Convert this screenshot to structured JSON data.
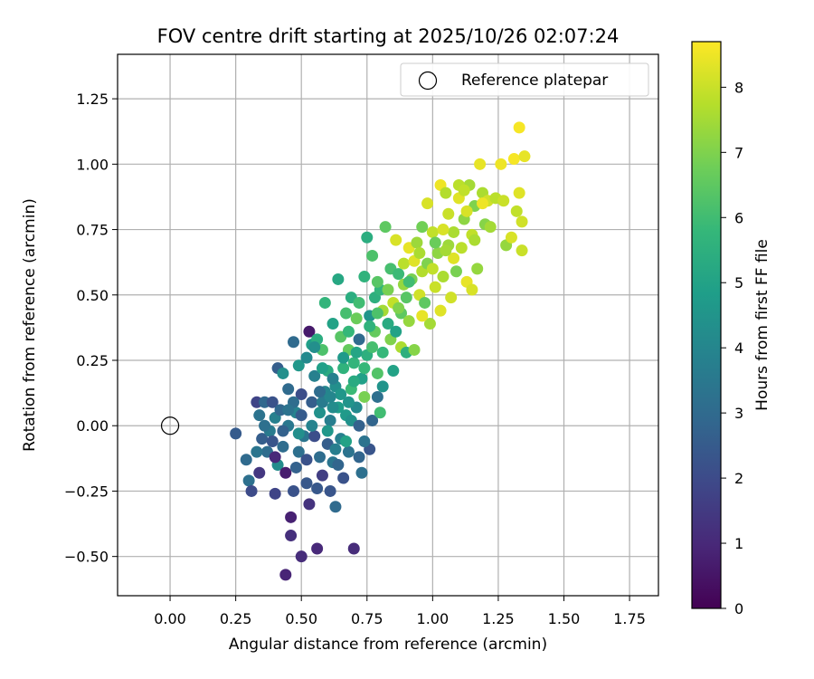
{
  "chart_data": {
    "type": "scatter",
    "title": "FOV centre drift starting at 2025/10/26 02:07:24",
    "xlabel": "Angular distance from reference (arcmin)",
    "ylabel": "Rotation from reference (arcmin)",
    "xlim": [
      -0.2,
      1.86
    ],
    "ylim": [
      -0.65,
      1.42
    ],
    "xticks": [
      0.0,
      0.25,
      0.5,
      0.75,
      1.0,
      1.25,
      1.5,
      1.75
    ],
    "xtick_labels": [
      "0.00",
      "0.25",
      "0.50",
      "0.75",
      "1.00",
      "1.25",
      "1.50",
      "1.75"
    ],
    "yticks": [
      -0.5,
      -0.25,
      0.0,
      0.25,
      0.5,
      0.75,
      1.0,
      1.25
    ],
    "ytick_labels": [
      "−0.50",
      "−0.25",
      "0.00",
      "0.25",
      "0.50",
      "0.75",
      "1.00",
      "1.25"
    ],
    "grid": true,
    "legend": {
      "placement": "top-right",
      "entries": [
        {
          "label": "Reference platepar",
          "marker": "open-circle"
        }
      ]
    },
    "reference_point": {
      "x": 0.0,
      "y": 0.0
    },
    "colorbar": {
      "label": "Hours from first FF file",
      "colormap": "viridis",
      "range": [
        0,
        8.7
      ],
      "ticks": [
        0,
        1,
        2,
        3,
        4,
        5,
        6,
        7,
        8
      ],
      "tick_labels": [
        "0",
        "1",
        "2",
        "3",
        "4",
        "5",
        "6",
        "7",
        "8"
      ]
    },
    "colormap_stops": [
      "#440154",
      "#482878",
      "#3e4989",
      "#31688e",
      "#26828e",
      "#1f9e89",
      "#35b779",
      "#6ece58",
      "#b5de2b",
      "#fde725"
    ],
    "points": [
      [
        0.25,
        -0.03,
        2.5
      ],
      [
        0.29,
        -0.13,
        3.0
      ],
      [
        0.3,
        -0.21,
        3.2
      ],
      [
        0.31,
        -0.25,
        2.0
      ],
      [
        0.33,
        0.09,
        1.8
      ],
      [
        0.34,
        -0.18,
        1.4
      ],
      [
        0.34,
        0.04,
        3.3
      ],
      [
        0.35,
        -0.05,
        2.6
      ],
      [
        0.36,
        0.09,
        2.9
      ],
      [
        0.37,
        -0.1,
        3.1
      ],
      [
        0.38,
        -0.02,
        3.6
      ],
      [
        0.39,
        0.09,
        2.2
      ],
      [
        0.4,
        -0.26,
        1.8
      ],
      [
        0.4,
        0.03,
        3.8
      ],
      [
        0.41,
        -0.15,
        4.2
      ],
      [
        0.41,
        0.22,
        2.6
      ],
      [
        0.42,
        0.06,
        2.9
      ],
      [
        0.43,
        -0.08,
        3.1
      ],
      [
        0.43,
        0.2,
        4.3
      ],
      [
        0.44,
        -0.57,
        0.9
      ],
      [
        0.44,
        -0.18,
        0.7
      ],
      [
        0.45,
        0.0,
        3.5
      ],
      [
        0.45,
        0.14,
        3.0
      ],
      [
        0.46,
        -0.35,
        0.8
      ],
      [
        0.46,
        -0.42,
        1.2
      ],
      [
        0.47,
        0.32,
        3.0
      ],
      [
        0.47,
        -0.25,
        2.2
      ],
      [
        0.48,
        0.05,
        3.9
      ],
      [
        0.48,
        -0.16,
        2.7
      ],
      [
        0.49,
        0.23,
        4.6
      ],
      [
        0.49,
        -0.1,
        3.2
      ],
      [
        0.5,
        -0.5,
        1.1
      ],
      [
        0.5,
        0.12,
        2.1
      ],
      [
        0.51,
        -0.04,
        3.4
      ],
      [
        0.52,
        0.26,
        4.1
      ],
      [
        0.52,
        -0.22,
        2.4
      ],
      [
        0.53,
        0.36,
        0.6
      ],
      [
        0.53,
        -0.3,
        1.3
      ],
      [
        0.54,
        0.09,
        2.6
      ],
      [
        0.54,
        0.31,
        4.9
      ],
      [
        0.55,
        -0.04,
        2.1
      ],
      [
        0.55,
        0.19,
        3.8
      ],
      [
        0.56,
        -0.47,
        1.0
      ],
      [
        0.56,
        0.33,
        5.4
      ],
      [
        0.57,
        -0.12,
        3.1
      ],
      [
        0.57,
        0.05,
        4.4
      ],
      [
        0.58,
        0.29,
        6.2
      ],
      [
        0.58,
        -0.19,
        1.6
      ],
      [
        0.59,
        0.13,
        4.0
      ],
      [
        0.59,
        0.47,
        5.7
      ],
      [
        0.6,
        -0.07,
        2.6
      ],
      [
        0.6,
        0.21,
        5.3
      ],
      [
        0.61,
        -0.25,
        2.3
      ],
      [
        0.61,
        0.02,
        3.7
      ],
      [
        0.62,
        0.39,
        5.0
      ],
      [
        0.62,
        -0.14,
        3.4
      ],
      [
        0.63,
        0.15,
        4.3
      ],
      [
        0.63,
        -0.31,
        3.0
      ],
      [
        0.64,
        0.56,
        5.2
      ],
      [
        0.64,
        0.07,
        4.8
      ],
      [
        0.65,
        -0.05,
        3.8
      ],
      [
        0.65,
        0.34,
        6.4
      ],
      [
        0.66,
        0.22,
        5.6
      ],
      [
        0.66,
        -0.2,
        2.2
      ],
      [
        0.67,
        0.43,
        6.1
      ],
      [
        0.67,
        0.04,
        4.7
      ],
      [
        0.68,
        0.29,
        6.6
      ],
      [
        0.68,
        -0.1,
        3.3
      ],
      [
        0.69,
        0.14,
        5.9
      ],
      [
        0.69,
        0.49,
        5.4
      ],
      [
        0.7,
        -0.47,
        1.1
      ],
      [
        0.7,
        0.24,
        5.7
      ],
      [
        0.71,
        0.07,
        4.1
      ],
      [
        0.71,
        0.41,
        6.7
      ],
      [
        0.72,
        -0.12,
        2.8
      ],
      [
        0.72,
        0.33,
        3.0
      ],
      [
        0.73,
        0.18,
        4.9
      ],
      [
        0.73,
        -0.18,
        3.2
      ],
      [
        0.74,
        0.57,
        5.6
      ],
      [
        0.74,
        0.11,
        6.9
      ],
      [
        0.75,
        0.72,
        5.4
      ],
      [
        0.75,
        0.27,
        5.5
      ],
      [
        0.76,
        0.42,
        4.5
      ],
      [
        0.76,
        -0.09,
        2.3
      ],
      [
        0.77,
        0.65,
        6.2
      ],
      [
        0.77,
        0.02,
        2.8
      ],
      [
        0.78,
        0.36,
        6.6
      ],
      [
        0.78,
        0.49,
        5.5
      ],
      [
        0.79,
        0.2,
        6.3
      ],
      [
        0.79,
        0.11,
        3.2
      ],
      [
        0.8,
        0.52,
        5.7
      ],
      [
        0.8,
        0.05,
        6.0
      ],
      [
        0.81,
        0.44,
        7.5
      ],
      [
        0.81,
        0.28,
        5.8
      ],
      [
        0.82,
        0.76,
        6.5
      ],
      [
        0.83,
        0.39,
        5.3
      ],
      [
        0.84,
        0.6,
        6.1
      ],
      [
        0.84,
        0.33,
        7.0
      ],
      [
        0.85,
        0.47,
        7.9
      ],
      [
        0.86,
        0.71,
        8.2
      ],
      [
        0.86,
        0.36,
        5.0
      ],
      [
        0.87,
        0.58,
        5.9
      ],
      [
        0.88,
        0.3,
        7.6
      ],
      [
        0.88,
        0.43,
        6.5
      ],
      [
        0.89,
        0.62,
        7.8
      ],
      [
        0.9,
        0.49,
        6.4
      ],
      [
        0.9,
        0.28,
        5.5
      ],
      [
        0.91,
        0.68,
        8.4
      ],
      [
        0.91,
        0.4,
        7.3
      ],
      [
        0.92,
        0.56,
        6.9
      ],
      [
        0.93,
        0.63,
        8.3
      ],
      [
        0.93,
        0.29,
        7.1
      ],
      [
        0.94,
        0.7,
        7.4
      ],
      [
        0.95,
        0.5,
        8.1
      ],
      [
        0.96,
        0.76,
        6.8
      ],
      [
        0.96,
        0.59,
        7.7
      ],
      [
        0.97,
        0.47,
        6.5
      ],
      [
        0.98,
        0.85,
        8.2
      ],
      [
        0.98,
        0.62,
        7.0
      ],
      [
        0.99,
        0.39,
        7.5
      ],
      [
        1.0,
        0.74,
        7.9
      ],
      [
        1.01,
        0.53,
        8.0
      ],
      [
        1.02,
        0.66,
        7.2
      ],
      [
        1.03,
        0.92,
        8.5
      ],
      [
        1.03,
        0.44,
        8.3
      ],
      [
        1.04,
        0.57,
        7.6
      ],
      [
        1.05,
        0.89,
        7.7
      ],
      [
        1.06,
        0.81,
        8.0
      ],
      [
        1.06,
        0.69,
        7.4
      ],
      [
        1.07,
        0.49,
        8.1
      ],
      [
        1.08,
        0.74,
        7.6
      ],
      [
        1.09,
        0.59,
        6.9
      ],
      [
        1.1,
        0.87,
        8.3
      ],
      [
        1.11,
        0.68,
        7.8
      ],
      [
        1.12,
        0.79,
        7.2
      ],
      [
        1.13,
        0.55,
        8.4
      ],
      [
        1.14,
        0.92,
        7.5
      ],
      [
        1.15,
        0.73,
        7.9
      ],
      [
        1.15,
        0.52,
        8.2
      ],
      [
        1.16,
        0.84,
        7.0
      ],
      [
        1.17,
        0.6,
        7.3
      ],
      [
        1.18,
        1.0,
        8.4
      ],
      [
        1.19,
        0.89,
        7.6
      ],
      [
        1.2,
        0.77,
        7.1
      ],
      [
        1.21,
        0.86,
        8.1
      ],
      [
        1.22,
        0.76,
        7.5
      ],
      [
        1.24,
        0.87,
        7.8
      ],
      [
        1.26,
        1.0,
        8.5
      ],
      [
        1.27,
        0.86,
        8.0
      ],
      [
        1.28,
        0.69,
        7.3
      ],
      [
        1.3,
        0.72,
        8.2
      ],
      [
        1.31,
        1.02,
        8.6
      ],
      [
        1.32,
        0.82,
        7.9
      ],
      [
        1.33,
        0.89,
        8.3
      ],
      [
        1.33,
        1.14,
        8.6
      ],
      [
        1.34,
        0.78,
        8.1
      ],
      [
        1.35,
        1.03,
        8.4
      ],
      [
        1.34,
        0.67,
        8.0
      ],
      [
        0.4,
        -0.12,
        1.0
      ],
      [
        0.43,
        -0.02,
        2.7
      ],
      [
        0.47,
        0.09,
        3.1
      ],
      [
        0.5,
        0.04,
        2.5
      ],
      [
        0.52,
        -0.13,
        2.2
      ],
      [
        0.56,
        -0.24,
        2.4
      ],
      [
        0.58,
        0.09,
        3.6
      ],
      [
        0.6,
        -0.02,
        4.6
      ],
      [
        0.62,
        0.07,
        4.2
      ],
      [
        0.63,
        -0.09,
        3.7
      ],
      [
        0.65,
        0.12,
        4.6
      ],
      [
        0.67,
        -0.06,
        5.0
      ],
      [
        0.69,
        0.02,
        4.4
      ],
      [
        0.72,
        0.0,
        2.7
      ],
      [
        0.74,
        -0.06,
        3.3
      ],
      [
        0.62,
        0.18,
        3.8
      ],
      [
        0.66,
        0.26,
        4.7
      ],
      [
        0.7,
        0.17,
        5.3
      ],
      [
        0.74,
        0.22,
        5.8
      ],
      [
        0.77,
        0.3,
        6.1
      ],
      [
        0.81,
        0.15,
        4.5
      ],
      [
        0.85,
        0.21,
        5.0
      ],
      [
        0.55,
        0.3,
        4.3
      ],
      [
        0.58,
        0.22,
        4.9
      ],
      [
        0.68,
        0.36,
        5.8
      ],
      [
        0.72,
        0.47,
        6.0
      ],
      [
        0.79,
        0.55,
        6.4
      ],
      [
        0.83,
        0.52,
        6.9
      ],
      [
        0.87,
        0.45,
        7.0
      ],
      [
        0.89,
        0.54,
        7.3
      ],
      [
        0.95,
        0.66,
        7.6
      ],
      [
        1.0,
        0.6,
        7.9
      ],
      [
        1.04,
        0.75,
        8.2
      ],
      [
        1.08,
        0.64,
        8.3
      ],
      [
        1.1,
        0.92,
        7.8
      ],
      [
        1.13,
        0.82,
        8.2
      ],
      [
        1.16,
        0.71,
        7.6
      ],
      [
        1.19,
        0.85,
        8.5
      ],
      [
        0.33,
        -0.1,
        3.4
      ],
      [
        0.36,
        0.0,
        3.2
      ],
      [
        0.39,
        -0.06,
        2.3
      ],
      [
        0.45,
        0.06,
        3.3
      ],
      [
        0.49,
        -0.03,
        4.3
      ],
      [
        0.54,
        0.0,
        3.9
      ],
      [
        0.57,
        0.13,
        3.1
      ],
      [
        0.61,
        0.11,
        4.0
      ],
      [
        0.64,
        -0.15,
        2.8
      ],
      [
        0.68,
        0.09,
        4.5
      ],
      [
        0.71,
        0.28,
        5.1
      ],
      [
        0.76,
        0.38,
        5.6
      ],
      [
        0.79,
        0.43,
        6.2
      ],
      [
        0.91,
        0.55,
        6.0
      ],
      [
        0.96,
        0.42,
        8.4
      ],
      [
        1.01,
        0.7,
        6.7
      ],
      [
        1.05,
        0.67,
        7.5
      ],
      [
        1.12,
        0.9,
        7.9
      ]
    ]
  }
}
